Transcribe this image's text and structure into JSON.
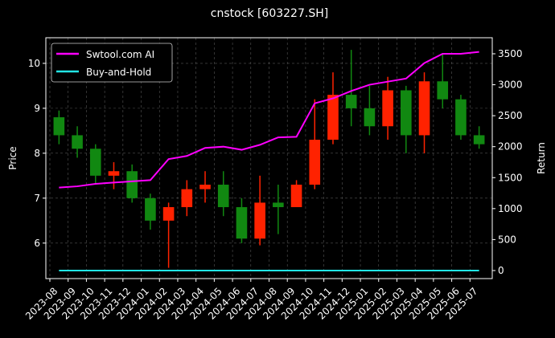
{
  "chart_data": {
    "type": "candlestick",
    "title": "cnstock [603227.SH]",
    "ylabel": "Price",
    "y2label": "Return",
    "x": [
      "2023-08",
      "2023-09",
      "2023-10",
      "2023-11",
      "2023-12",
      "2024-01",
      "2024-02",
      "2024-03",
      "2024-04",
      "2024-05",
      "2024-06",
      "2024-07",
      "2024-08",
      "2024-09",
      "2024-10",
      "2024-11",
      "2024-12",
      "2025-01",
      "2025-02",
      "2025-03",
      "2025-04",
      "2025-05",
      "2025-06",
      "2025-07"
    ],
    "open": [
      8.8,
      8.4,
      8.1,
      7.5,
      7.6,
      7.0,
      6.5,
      6.8,
      7.2,
      7.3,
      6.8,
      6.1,
      6.9,
      6.8,
      7.3,
      8.3,
      9.3,
      9.0,
      8.6,
      9.4,
      8.4,
      9.6,
      9.2,
      8.4
    ],
    "high": [
      8.95,
      8.6,
      8.2,
      7.8,
      7.75,
      7.1,
      6.9,
      7.4,
      7.6,
      7.6,
      7.0,
      7.5,
      7.3,
      7.4,
      9.2,
      9.8,
      10.3,
      9.5,
      9.7,
      9.5,
      9.8,
      10.2,
      9.3,
      8.6
    ],
    "low": [
      8.2,
      7.9,
      7.3,
      7.2,
      6.9,
      6.3,
      5.45,
      6.6,
      6.9,
      6.6,
      6.0,
      5.95,
      6.2,
      6.8,
      7.2,
      8.2,
      8.6,
      8.4,
      8.3,
      8.0,
      8.0,
      9.0,
      8.3,
      8.1
    ],
    "close": [
      8.4,
      8.1,
      7.5,
      7.6,
      7.0,
      6.5,
      6.8,
      7.2,
      7.3,
      6.8,
      6.1,
      6.9,
      6.8,
      7.3,
      8.3,
      9.3,
      9.0,
      8.6,
      9.4,
      8.4,
      9.6,
      9.2,
      8.4,
      8.2
    ],
    "up_color": "#ff2200",
    "down_color": "#118811",
    "series": [
      {
        "name": "Swtool.com AI",
        "color": "#ff00ff",
        "axis": "y2",
        "values": [
          1340,
          1360,
          1400,
          1420,
          1440,
          1460,
          1800,
          1850,
          1980,
          2000,
          1950,
          2030,
          2150,
          2160,
          2700,
          2780,
          2900,
          3000,
          3050,
          3100,
          3350,
          3500,
          3500,
          3530
        ]
      },
      {
        "name": "Buy-and-Hold",
        "color": "#22e5e5",
        "axis": "y2",
        "values": [
          0,
          0,
          0,
          0,
          0,
          0,
          0,
          0,
          0,
          0,
          0,
          0,
          0,
          0,
          0,
          0,
          0,
          0,
          0,
          0,
          0,
          0,
          0,
          0
        ]
      }
    ],
    "ylim": [
      5.21,
      10.57
    ],
    "yticks": [
      6,
      7,
      8,
      9,
      10
    ],
    "y2lim": [
      -130,
      3759
    ],
    "y2ticks": [
      0,
      500,
      1000,
      1500,
      2000,
      2500,
      3000,
      3500
    ],
    "grid": true,
    "legend": "upper left"
  }
}
